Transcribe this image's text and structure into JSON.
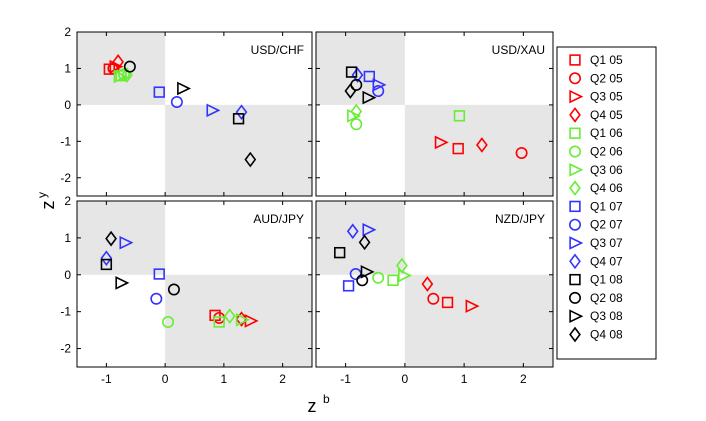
{
  "chart_data": {
    "type": "scatter",
    "xlabel": "z",
    "xlabel_sup": "b",
    "ylabel": "z",
    "ylabel_sup": "y",
    "xlim": [
      -1.5,
      2.5
    ],
    "ylim": [
      -2.5,
      2
    ],
    "xticks": [
      "-1",
      "0",
      "1",
      "2"
    ],
    "yticks": [
      "-2",
      "-1",
      "0",
      "1",
      "2"
    ],
    "legend_position": "right",
    "shading": "quadrants x<0,y>0 and x>0,y<0 shaded light gray",
    "series": [
      {
        "name": "Q1 05",
        "color": "#ff0000",
        "marker": "square"
      },
      {
        "name": "Q2 05",
        "color": "#ff0000",
        "marker": "circle"
      },
      {
        "name": "Q3 05",
        "color": "#ff0000",
        "marker": "triangle-right"
      },
      {
        "name": "Q4 05",
        "color": "#ff0000",
        "marker": "diamond"
      },
      {
        "name": "Q1 06",
        "color": "#66ee33",
        "marker": "square"
      },
      {
        "name": "Q2 06",
        "color": "#66ee33",
        "marker": "circle"
      },
      {
        "name": "Q3 06",
        "color": "#66ee33",
        "marker": "triangle-right"
      },
      {
        "name": "Q4 06",
        "color": "#66ee33",
        "marker": "diamond"
      },
      {
        "name": "Q1 07",
        "color": "#3333ff",
        "marker": "square"
      },
      {
        "name": "Q2 07",
        "color": "#3333ff",
        "marker": "circle"
      },
      {
        "name": "Q3 07",
        "color": "#3333ff",
        "marker": "triangle-right"
      },
      {
        "name": "Q4 07",
        "color": "#3333ff",
        "marker": "diamond"
      },
      {
        "name": "Q1 08",
        "color": "#000000",
        "marker": "square"
      },
      {
        "name": "Q2 08",
        "color": "#000000",
        "marker": "circle"
      },
      {
        "name": "Q3 08",
        "color": "#000000",
        "marker": "triangle-right"
      },
      {
        "name": "Q4 08",
        "color": "#000000",
        "marker": "diamond"
      }
    ],
    "panels": [
      {
        "title": "USD/CHF",
        "points": [
          [
            -0.95,
            0.98
          ],
          [
            -0.88,
            1.0
          ],
          [
            -0.85,
            1.05
          ],
          [
            -0.8,
            1.18
          ],
          [
            -0.75,
            0.8
          ],
          [
            -0.7,
            0.84
          ],
          [
            -0.78,
            0.78
          ],
          [
            -0.65,
            0.82
          ],
          [
            -0.1,
            0.35
          ],
          [
            0.2,
            0.08
          ],
          [
            0.8,
            -0.15
          ],
          [
            1.3,
            -0.2
          ],
          [
            1.25,
            -0.38
          ],
          [
            -0.6,
            1.05
          ],
          [
            0.3,
            0.45
          ],
          [
            1.45,
            -1.5
          ]
        ]
      },
      {
        "title": "USD/XAU",
        "points": [
          [
            0.9,
            -1.2
          ],
          [
            1.97,
            -1.32
          ],
          [
            0.6,
            -1.03
          ],
          [
            1.3,
            -1.1
          ],
          [
            0.92,
            -0.3
          ],
          [
            -0.82,
            -0.53
          ],
          [
            -0.88,
            -0.3
          ],
          [
            -0.82,
            -0.18
          ],
          [
            -0.6,
            0.78
          ],
          [
            -0.45,
            0.38
          ],
          [
            -0.45,
            0.55
          ],
          [
            -0.8,
            0.82
          ],
          [
            -0.9,
            0.9
          ],
          [
            -0.82,
            0.55
          ],
          [
            -0.62,
            0.2
          ],
          [
            -0.92,
            0.38
          ]
        ]
      },
      {
        "title": "AUD/JPY",
        "points": [
          [
            0.85,
            -1.1
          ],
          [
            0.92,
            -1.17
          ],
          [
            1.45,
            -1.25
          ],
          [
            1.3,
            -1.2
          ],
          [
            0.92,
            -1.28
          ],
          [
            0.05,
            -1.28
          ],
          [
            1.3,
            -1.22
          ],
          [
            1.1,
            -1.12
          ],
          [
            -0.1,
            0.02
          ],
          [
            -0.15,
            -0.65
          ],
          [
            -0.68,
            0.87
          ],
          [
            -1.0,
            0.45
          ],
          [
            -1.0,
            0.28
          ],
          [
            0.15,
            -0.4
          ],
          [
            -0.75,
            -0.22
          ],
          [
            -0.92,
            0.98
          ]
        ]
      },
      {
        "title": "NZD/JPY",
        "points": [
          [
            0.72,
            -0.75
          ],
          [
            0.48,
            -0.65
          ],
          [
            1.12,
            -0.85
          ],
          [
            0.38,
            -0.25
          ],
          [
            -0.2,
            -0.15
          ],
          [
            -0.45,
            -0.08
          ],
          [
            -0.02,
            -0.02
          ],
          [
            -0.05,
            0.25
          ],
          [
            -0.95,
            -0.3
          ],
          [
            -0.83,
            0.02
          ],
          [
            -0.62,
            1.22
          ],
          [
            -0.88,
            1.18
          ],
          [
            -1.1,
            0.6
          ],
          [
            -0.72,
            -0.15
          ],
          [
            -0.65,
            0.08
          ],
          [
            -0.68,
            0.88
          ]
        ]
      }
    ]
  }
}
